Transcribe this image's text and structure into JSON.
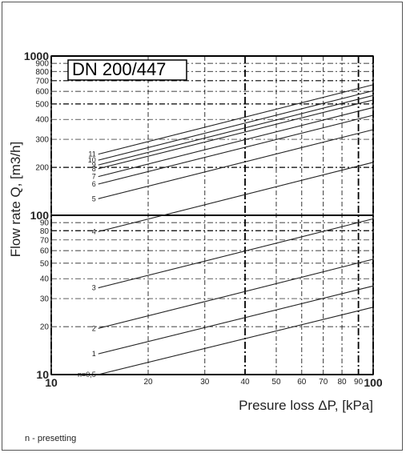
{
  "chart_data": {
    "type": "line",
    "title": "DN 200/447",
    "xlabel": "Presure loss ΔP, [kPa]",
    "ylabel": "Flow rate Q, [m3/h]",
    "x_scale": "log",
    "y_scale": "log",
    "xlim": [
      10,
      100
    ],
    "ylim": [
      10,
      1000
    ],
    "grid": true,
    "x_ticks": [
      "10",
      "20",
      "30",
      "40",
      "50",
      "60",
      "70",
      "80",
      "90",
      "100"
    ],
    "y_ticks": [
      "10",
      "20",
      "30",
      "40",
      "50",
      "60",
      "70",
      "80",
      "90",
      "100",
      "200",
      "300",
      "400",
      "500",
      "600",
      "700",
      "800",
      "900",
      "1000"
    ],
    "series": [
      {
        "name": "n=0,5",
        "x": [
          14,
          100
        ],
        "y": [
          10,
          26.5
        ]
      },
      {
        "name": "1",
        "x": [
          14,
          100
        ],
        "y": [
          13.5,
          36
        ]
      },
      {
        "name": "2",
        "x": [
          14,
          100
        ],
        "y": [
          19.5,
          53
        ]
      },
      {
        "name": "3",
        "x": [
          14,
          100
        ],
        "y": [
          35,
          95
        ]
      },
      {
        "name": "4",
        "x": [
          14,
          100
        ],
        "y": [
          79,
          215
        ]
      },
      {
        "name": "5",
        "x": [
          14,
          100
        ],
        "y": [
          127,
          345
        ]
      },
      {
        "name": "6",
        "x": [
          14,
          100
        ],
        "y": [
          157,
          425
        ]
      },
      {
        "name": "7",
        "x": [
          14,
          100
        ],
        "y": [
          175,
          475
        ]
      },
      {
        "name": "8",
        "x": [
          14,
          100
        ],
        "y": [
          196,
          530
        ]
      },
      {
        "name": "9",
        "x": [
          14,
          100
        ],
        "y": [
          207,
          565
        ]
      },
      {
        "name": "10",
        "x": [
          14,
          100
        ],
        "y": [
          222,
          605
        ]
      },
      {
        "name": "11",
        "x": [
          14,
          100
        ],
        "y": [
          242,
          660
        ]
      }
    ]
  },
  "footnote": "n -  presetting"
}
